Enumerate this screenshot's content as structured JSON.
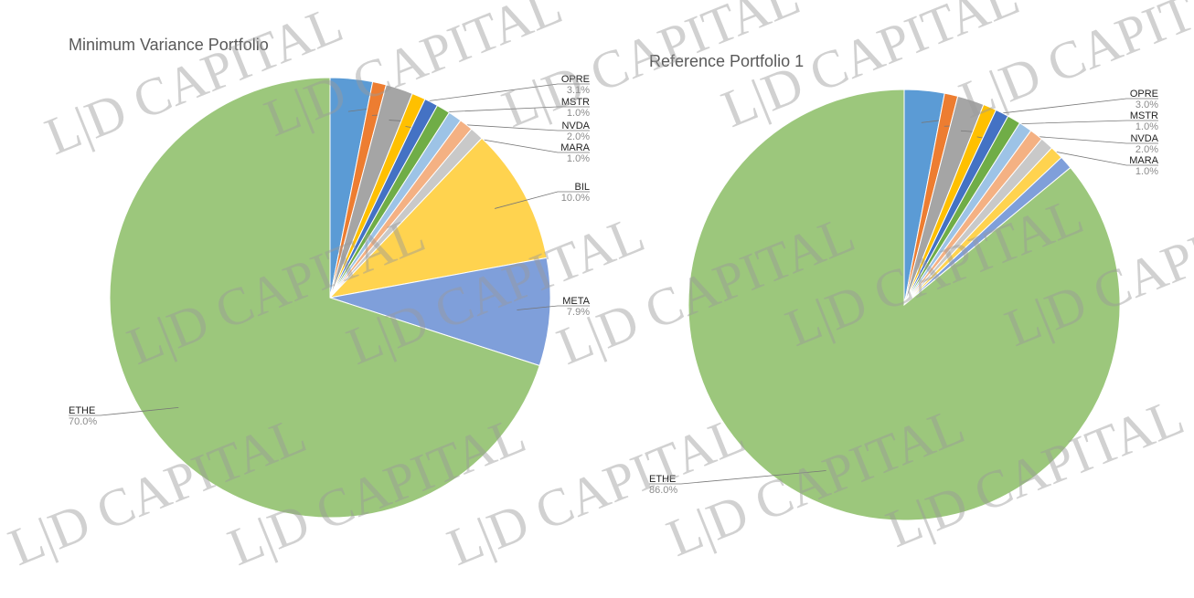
{
  "chart_data": [
    {
      "type": "pie",
      "title": "Minimum Variance Portfolio",
      "categories": [
        "OPRE",
        "MSTR",
        "NVDA",
        "MARA",
        null,
        null,
        null,
        null,
        null,
        "BIL",
        "META",
        "ETHE"
      ],
      "values": [
        3.1,
        1.0,
        2.0,
        1.0,
        1.0,
        1.0,
        1.0,
        1.0,
        1.0,
        10.0,
        7.9,
        70.0
      ],
      "value_labels": [
        "3.1%",
        "1.0%",
        "2.0%",
        "1.0%",
        null,
        null,
        null,
        null,
        null,
        "10.0%",
        "7.9%",
        "70.0%"
      ],
      "colors": [
        "#5b9bd5",
        "#ed7d31",
        "#a5a5a5",
        "#ffc000",
        "#4472c4",
        "#70ad47",
        "#9dc3e6",
        "#f4b183",
        "#c9c9c9",
        "#ffd34f",
        "#7f9fda",
        "#9cc77c"
      ]
    },
    {
      "type": "pie",
      "title": "Reference Portfolio 1",
      "categories": [
        "OPRE",
        "MSTR",
        "NVDA",
        "MARA",
        null,
        null,
        null,
        null,
        null,
        null,
        null,
        "ETHE"
      ],
      "values": [
        3.0,
        1.0,
        2.0,
        1.0,
        1.0,
        1.0,
        1.0,
        1.0,
        1.0,
        1.0,
        1.0,
        86.0
      ],
      "value_labels": [
        "3.0%",
        "1.0%",
        "2.0%",
        "1.0%",
        null,
        null,
        null,
        null,
        null,
        null,
        null,
        "86.0%"
      ],
      "colors": [
        "#5b9bd5",
        "#ed7d31",
        "#a5a5a5",
        "#ffc000",
        "#4472c4",
        "#70ad47",
        "#9dc3e6",
        "#f4b183",
        "#c9c9c9",
        "#ffd34f",
        "#7f9fda",
        "#9cc77c"
      ]
    }
  ],
  "watermark": "L|D CAPITAL"
}
